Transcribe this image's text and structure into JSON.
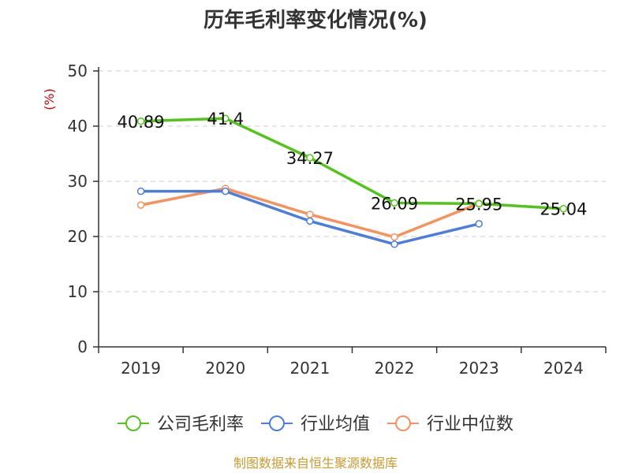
{
  "chart_data": {
    "type": "line",
    "title": "历年毛利率变化情况(%)",
    "ylabel": "(%)",
    "xlabel": "",
    "categories": [
      "2019",
      "2020",
      "2021",
      "2022",
      "2023",
      "2024"
    ],
    "ylim": [
      0,
      50
    ],
    "yticks": [
      0,
      10,
      20,
      30,
      40,
      50
    ],
    "grid": true,
    "grid_style": "dashed",
    "legend_position": "bottom",
    "series": [
      {
        "name": "公司毛利率",
        "color": "#52c41a",
        "values": [
          40.89,
          41.4,
          34.27,
          26.09,
          25.95,
          25.04
        ],
        "labels": [
          "40.89",
          "41.4",
          "34.27",
          "26.09",
          "25.95",
          "25.04"
        ]
      },
      {
        "name": "行业均值",
        "color": "#4a7de0",
        "values": [
          28.2,
          28.2,
          22.8,
          18.6,
          22.3,
          null
        ]
      },
      {
        "name": "行业中位数",
        "color": "#f5925e",
        "values": [
          25.7,
          28.7,
          24.0,
          19.9,
          26.0,
          null
        ]
      }
    ]
  },
  "colors": {
    "ylabel": "#cc0000",
    "source": "#c79a2e",
    "axis": "#333333",
    "grid": "#cccccc"
  },
  "source": "制图数据来自恒生聚源数据库"
}
